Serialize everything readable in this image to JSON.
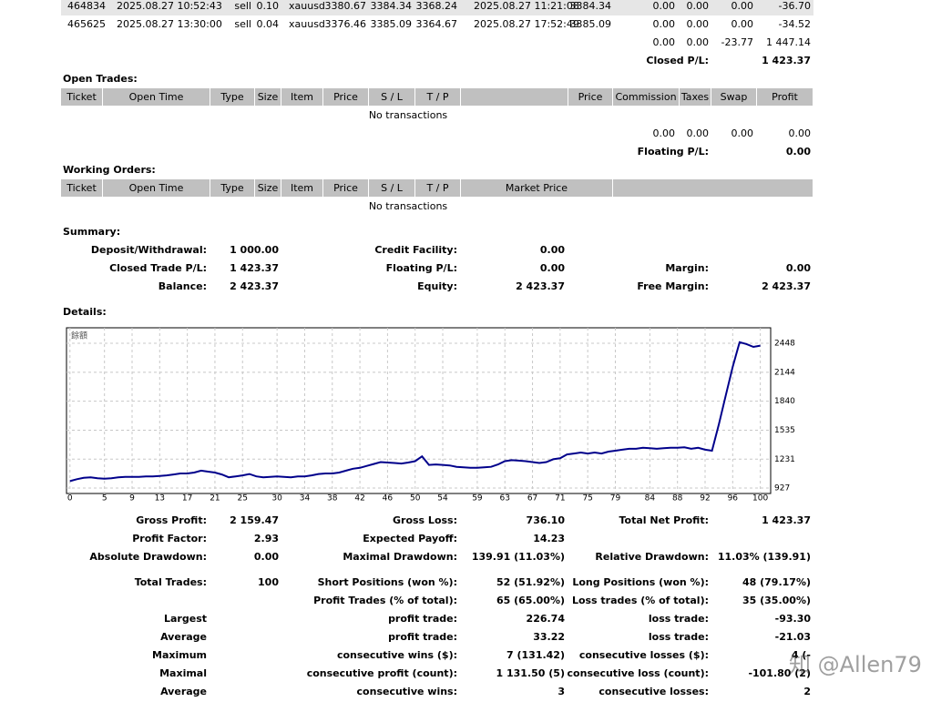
{
  "trades": {
    "rows": [
      [
        "464834",
        "2025.08.27 10:52:43",
        "sell",
        "0.10",
        "xauusd",
        "3380.67",
        "3384.34",
        "3368.24",
        "2025.08.27 11:21:08",
        "3384.34",
        "0.00",
        "0.00",
        "0.00",
        "-36.70"
      ],
      [
        "465625",
        "2025.08.27 13:30:00",
        "sell",
        "0.04",
        "xauusd",
        "3376.46",
        "3385.09",
        "3364.67",
        "2025.08.27 17:52:49",
        "3385.09",
        "0.00",
        "0.00",
        "0.00",
        "-34.52"
      ]
    ],
    "totals": [
      "0.00",
      "0.00",
      "-23.77",
      "1 447.14"
    ],
    "closed_label": "Closed P/L:",
    "closed_value": "1 423.37"
  },
  "open_trades": {
    "title": "Open Trades:",
    "headers": [
      "Ticket",
      "Open Time",
      "Type",
      "Size",
      "Item",
      "Price",
      "S / L",
      "T / P",
      null,
      "Price",
      "Commission",
      "Taxes",
      "Swap",
      "Profit"
    ],
    "empty": "No transactions",
    "totals": [
      "0.00",
      "0.00",
      "0.00",
      "0.00"
    ],
    "floating_label": "Floating P/L:",
    "floating_value": "0.00"
  },
  "working_orders": {
    "title": "Working Orders:",
    "headers": [
      "Ticket",
      "Open Time",
      "Type",
      "Size",
      "Item",
      "Price",
      "S / L",
      "T / P",
      "Market Price",
      null
    ],
    "empty": "No transactions"
  },
  "summary": {
    "title": "Summary:",
    "rows": [
      [
        "Deposit/Withdrawal:",
        "1 000.00",
        "Credit Facility:",
        "0.00",
        null,
        null
      ],
      [
        "Closed Trade P/L:",
        "1 423.37",
        "Floating P/L:",
        "0.00",
        "Margin:",
        "0.00"
      ],
      [
        "Balance:",
        "2 423.37",
        "Equity:",
        "2 423.37",
        "Free Margin:",
        "2 423.37"
      ]
    ]
  },
  "details": {
    "title": "Details:"
  },
  "chart_data": {
    "type": "line",
    "x": [
      0,
      1,
      2,
      3,
      4,
      5,
      6,
      7,
      8,
      9,
      10,
      11,
      12,
      13,
      14,
      15,
      16,
      17,
      18,
      19,
      20,
      21,
      22,
      23,
      24,
      25,
      26,
      27,
      28,
      29,
      30,
      31,
      32,
      33,
      34,
      35,
      36,
      37,
      38,
      39,
      40,
      41,
      42,
      43,
      44,
      45,
      46,
      47,
      48,
      49,
      50,
      51,
      52,
      53,
      54,
      55,
      56,
      57,
      58,
      59,
      60,
      61,
      62,
      63,
      64,
      65,
      66,
      67,
      68,
      69,
      70,
      71,
      72,
      73,
      74,
      75,
      76,
      77,
      78,
      79,
      80,
      81,
      82,
      83,
      84,
      85,
      86,
      87,
      88,
      89,
      90,
      91,
      92,
      93,
      94,
      95,
      96,
      97,
      98,
      99,
      100
    ],
    "series": [
      {
        "name": "餘額",
        "color": "#00008b",
        "values": [
          1000,
          1020,
          1035,
          1040,
          1030,
          1025,
          1030,
          1040,
          1045,
          1045,
          1045,
          1050,
          1050,
          1055,
          1060,
          1070,
          1080,
          1080,
          1090,
          1110,
          1100,
          1090,
          1070,
          1040,
          1050,
          1060,
          1075,
          1050,
          1040,
          1045,
          1050,
          1045,
          1040,
          1050,
          1050,
          1060,
          1075,
          1080,
          1080,
          1090,
          1110,
          1130,
          1140,
          1160,
          1180,
          1200,
          1195,
          1190,
          1185,
          1195,
          1210,
          1260,
          1170,
          1175,
          1170,
          1165,
          1150,
          1145,
          1140,
          1140,
          1145,
          1150,
          1175,
          1210,
          1220,
          1215,
          1210,
          1200,
          1190,
          1200,
          1230,
          1240,
          1280,
          1290,
          1300,
          1290,
          1300,
          1290,
          1310,
          1320,
          1330,
          1340,
          1340,
          1350,
          1345,
          1340,
          1345,
          1350,
          1350,
          1355,
          1340,
          1350,
          1330,
          1320,
          1600,
          1900,
          2200,
          2460,
          2440,
          2410,
          2423.37
        ]
      }
    ],
    "xlim": [
      -0.5,
      101.5
    ],
    "ylim": [
      870,
      2611
    ],
    "xticks": [
      0,
      5,
      9,
      13,
      17,
      21,
      25,
      30,
      34,
      38,
      42,
      46,
      50,
      54,
      59,
      63,
      67,
      71,
      75,
      79,
      84,
      88,
      92,
      96,
      100
    ],
    "yticks": [
      927,
      1231,
      1535,
      1840,
      2144,
      2448
    ],
    "grid": true
  },
  "stats": {
    "rows": [
      [
        "Gross Profit:",
        "2 159.47",
        "Gross Loss:",
        "736.10",
        "Total Net Profit:",
        "1 423.37"
      ],
      [
        "Profit Factor:",
        "2.93",
        "Expected Payoff:",
        "14.23",
        null,
        null
      ],
      [
        "Absolute Drawdown:",
        "0.00",
        "Maximal Drawdown:",
        "139.91 (11.03%)",
        "Relative Drawdown:",
        "11.03% (139.91)"
      ],
      [
        "Total Trades:",
        "100",
        "Short Positions (won %):",
        "52 (51.92%)",
        "Long Positions (won %):",
        "48 (79.17%)"
      ],
      [
        null,
        null,
        "Profit Trades (% of total):",
        "65 (65.00%)",
        "Loss trades (% of total):",
        "35 (35.00%)"
      ],
      [
        "Largest",
        null,
        "profit trade:",
        "226.74",
        "loss trade:",
        "-93.30"
      ],
      [
        "Average",
        null,
        "profit trade:",
        "33.22",
        "loss trade:",
        "-21.03"
      ],
      [
        "Maximum",
        null,
        "consecutive wins ($):",
        "7 (131.42)",
        "consecutive losses ($):",
        "4 (-"
      ],
      [
        "Maximal",
        null,
        "consecutive profit (count):",
        "1 131.50 (5)",
        "consecutive loss (count):",
        "-101.80 (2)"
      ],
      [
        "Average",
        null,
        "consecutive wins:",
        "3",
        "consecutive losses:",
        "2"
      ]
    ]
  },
  "watermark": "知 @Allen79"
}
